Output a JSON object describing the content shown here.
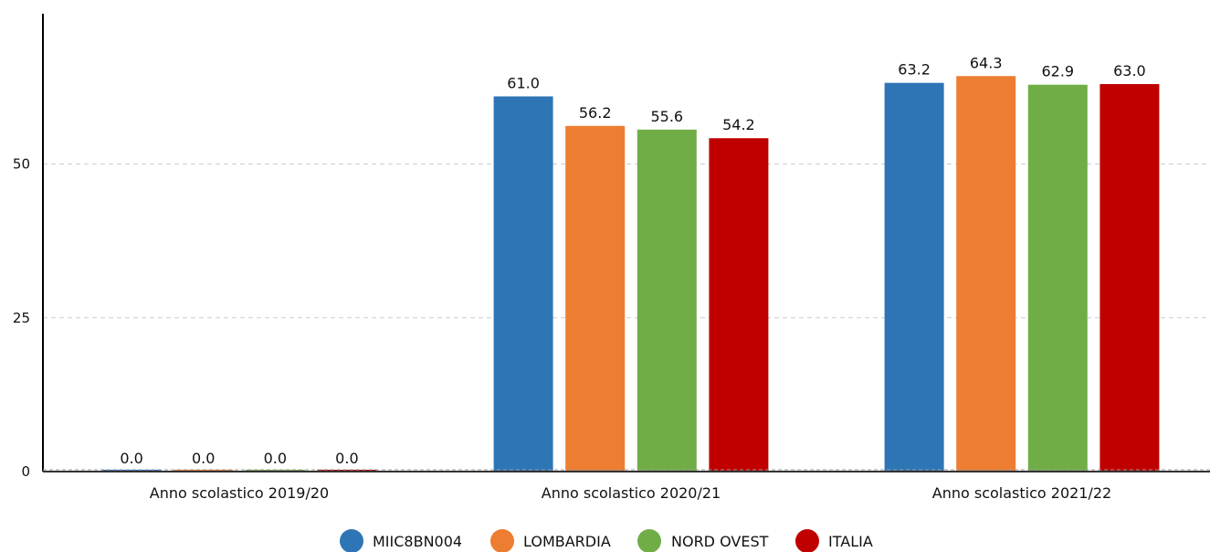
{
  "chart_data": {
    "type": "bar",
    "categories": [
      "Anno scolastico 2019/20",
      "Anno scolastico 2020/21",
      "Anno scolastico 2021/22"
    ],
    "series": [
      {
        "name": "MIIC8BN004",
        "color": "#2e75b6",
        "values": [
          0.0,
          61.0,
          63.2
        ],
        "labels": [
          "0.0",
          "61.0",
          "63.2"
        ]
      },
      {
        "name": "LOMBARDIA",
        "color": "#ed7d31",
        "values": [
          0.0,
          56.2,
          64.3
        ],
        "labels": [
          "0.0",
          "56.2",
          "64.3"
        ]
      },
      {
        "name": "NORD OVEST",
        "color": "#70ad47",
        "values": [
          0.0,
          55.6,
          62.9
        ],
        "labels": [
          "0.0",
          "55.6",
          "62.9"
        ]
      },
      {
        "name": "ITALIA",
        "color": "#c00000",
        "values": [
          0.0,
          54.2,
          63.0
        ],
        "labels": [
          "0.0",
          "54.2",
          "63.0"
        ]
      }
    ],
    "yticks": [
      "0",
      "25",
      "50"
    ],
    "ylim": [
      0,
      75
    ],
    "grid": true,
    "legend_position": "bottom-center",
    "title": "",
    "xlabel": "",
    "ylabel": ""
  }
}
